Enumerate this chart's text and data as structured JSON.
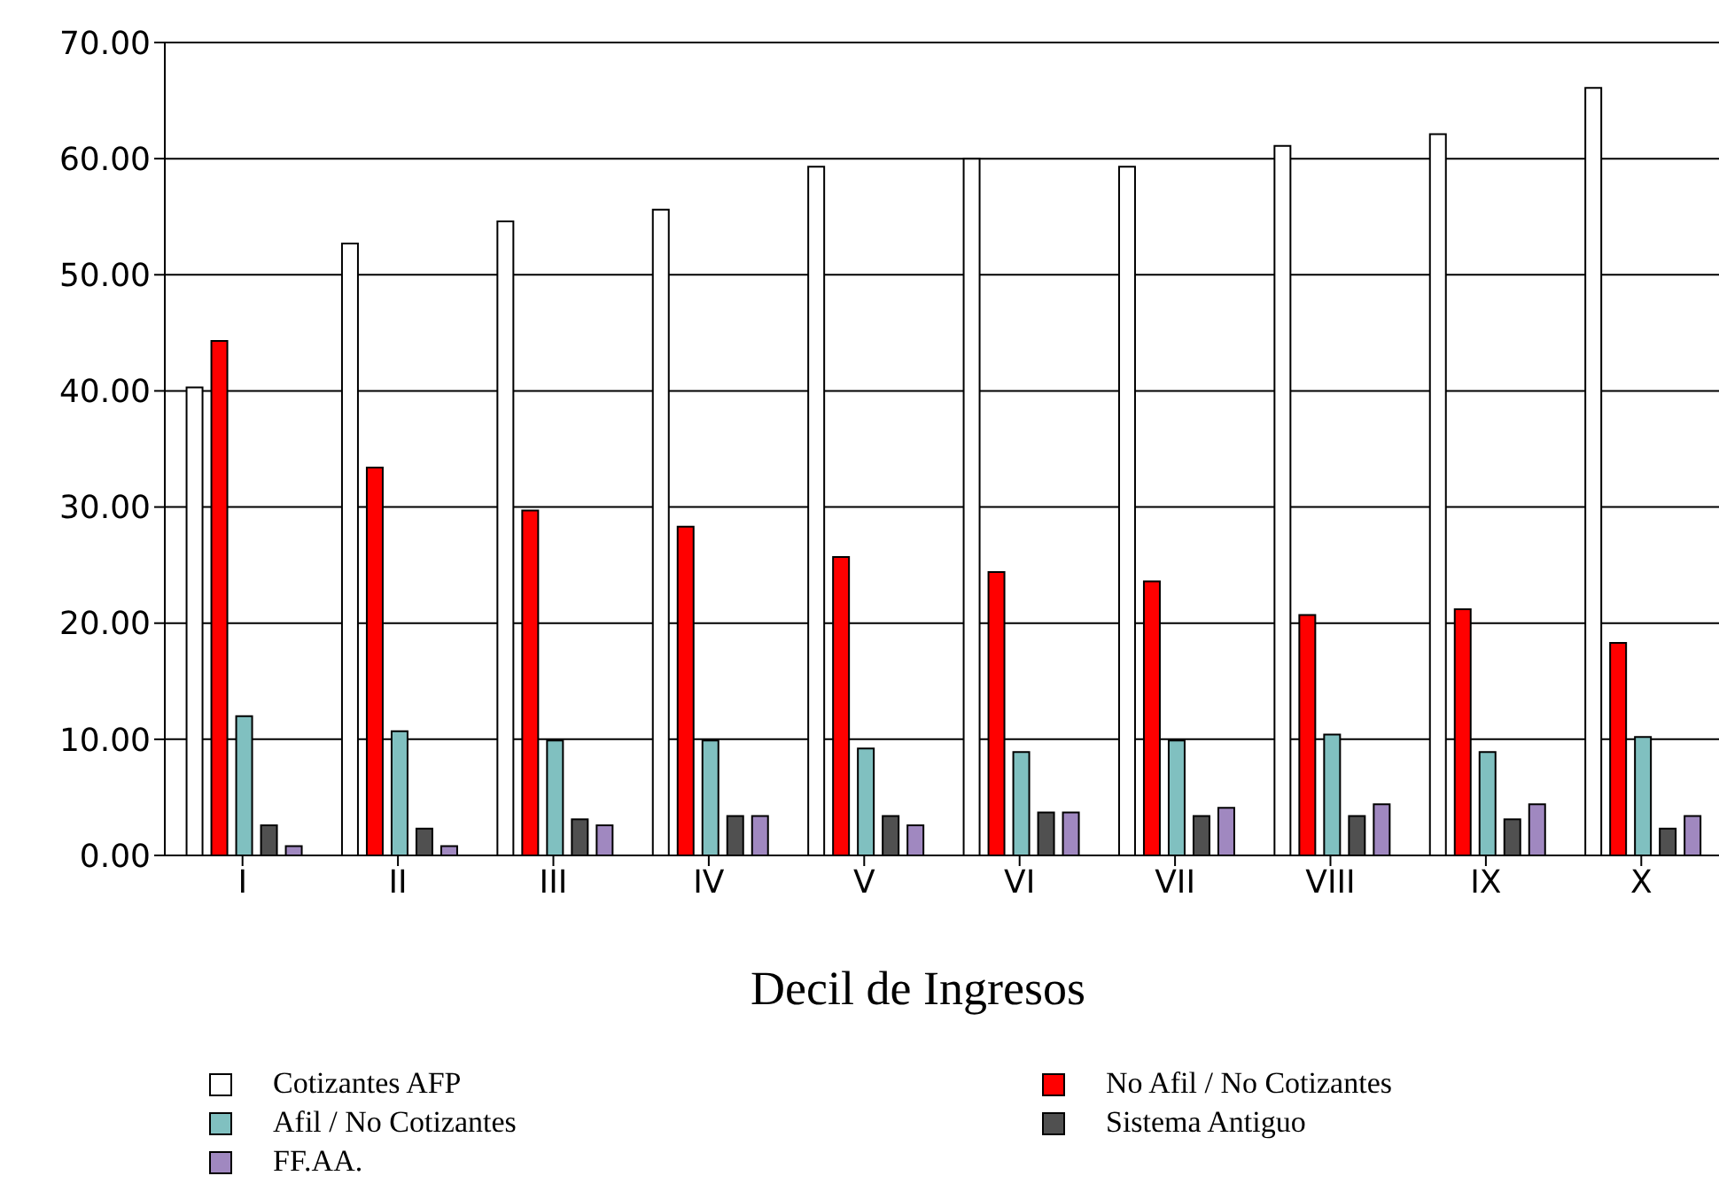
{
  "chart_data": {
    "type": "bar",
    "xlabel": "Decil de Ingresos",
    "categories": [
      "I",
      "II",
      "III",
      "IV",
      "V",
      "VI",
      "VII",
      "VIII",
      "IX",
      "X"
    ],
    "series": [
      {
        "name": "Cotizantes AFP",
        "color": "#ffffff",
        "values": [
          40.3,
          52.7,
          54.6,
          55.6,
          59.3,
          60.0,
          59.3,
          61.1,
          62.1,
          66.1
        ]
      },
      {
        "name": "No Afil / No Cotizantes",
        "color": "#ff0000",
        "values": [
          44.3,
          33.4,
          29.7,
          28.3,
          25.7,
          24.4,
          23.6,
          20.7,
          21.2,
          18.3
        ]
      },
      {
        "name": "Afil / No Cotizantes",
        "color": "#80c0c0",
        "values": [
          12.0,
          10.7,
          9.9,
          9.9,
          9.2,
          8.9,
          9.9,
          10.4,
          8.9,
          10.2
        ]
      },
      {
        "name": "Sistema Antiguo",
        "color": "#505050",
        "values": [
          2.6,
          2.3,
          3.1,
          3.4,
          3.4,
          3.7,
          3.4,
          3.4,
          3.1,
          2.3
        ]
      },
      {
        "name": "FF.AA.",
        "color": "#a088c0",
        "values": [
          0.8,
          0.8,
          2.6,
          3.4,
          2.6,
          3.7,
          4.1,
          4.4,
          4.4,
          3.4
        ]
      }
    ],
    "ylim": [
      0,
      70
    ],
    "yticks": [
      {
        "value": 0,
        "label": "0.00"
      },
      {
        "value": 10,
        "label": "10.00"
      },
      {
        "value": 20,
        "label": "20.00"
      },
      {
        "value": 30,
        "label": "30.00"
      },
      {
        "value": 40,
        "label": "40.00"
      },
      {
        "value": 50,
        "label": "50.00"
      },
      {
        "value": 60,
        "label": "60.00"
      },
      {
        "value": 70,
        "label": "70.00"
      }
    ],
    "grid": "y",
    "legend": "bottom"
  }
}
